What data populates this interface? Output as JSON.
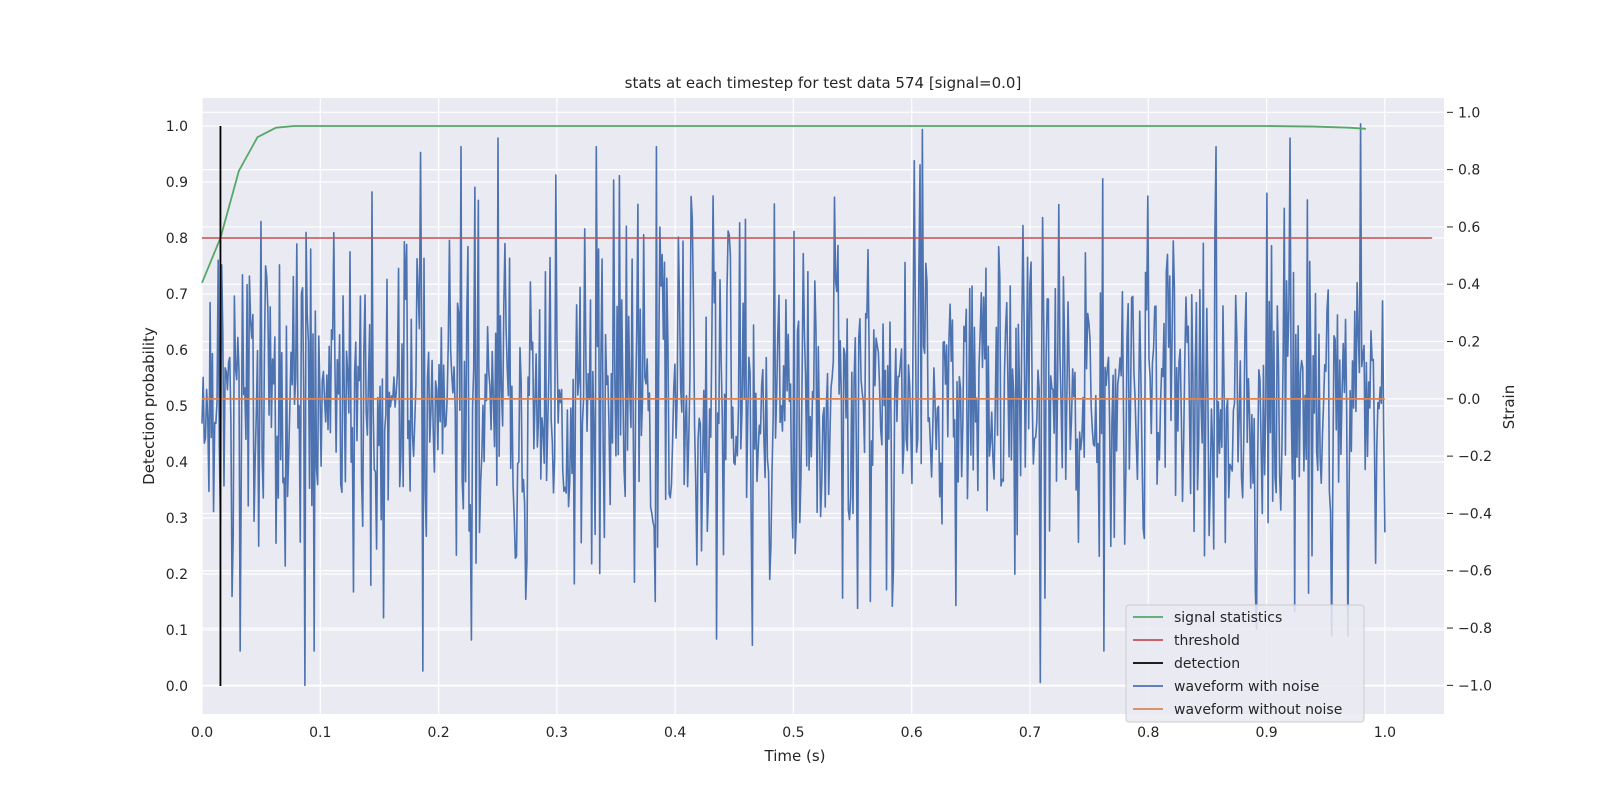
{
  "chart_data": {
    "type": "line",
    "title": "stats at each timestep for test data 574 [signal=0.0]",
    "xlabel": "Time (s)",
    "ylabel_left": "Detection probability",
    "ylabel_right": "Strain",
    "xlim": [
      0.0,
      1.05
    ],
    "ylim_left": [
      -0.05,
      1.05
    ],
    "ylim_right": [
      -1.1,
      1.05
    ],
    "x_ticks": [
      "0.0",
      "0.1",
      "0.2",
      "0.3",
      "0.4",
      "0.5",
      "0.6",
      "0.7",
      "0.8",
      "0.9",
      "1.0"
    ],
    "y_ticks_left": [
      "0.0",
      "0.1",
      "0.2",
      "0.3",
      "0.4",
      "0.5",
      "0.6",
      "0.7",
      "0.8",
      "0.9",
      "1.0"
    ],
    "y_ticks_right": [
      "−1.0",
      "−0.8",
      "−0.6",
      "−0.4",
      "−0.2",
      "0.0",
      "0.2",
      "0.4",
      "0.6",
      "0.8",
      "1.0"
    ],
    "grid": true,
    "background": "#eaeaf2",
    "legend_placement": "lower-right",
    "series": [
      {
        "name": "signal statistics",
        "axis": "left",
        "color": "#55a868",
        "x": [
          0.0,
          0.0156,
          0.0312,
          0.0469,
          0.0625,
          0.0781,
          0.1,
          0.2,
          0.3,
          0.4,
          0.5,
          0.6,
          0.7,
          0.8,
          0.9,
          0.94,
          0.97,
          0.984
        ],
        "y": [
          0.72,
          0.8,
          0.92,
          0.98,
          0.997,
          1.0,
          1.0,
          1.0,
          1.0,
          1.0,
          1.0,
          1.0,
          1.0,
          1.0,
          1.0,
          0.999,
          0.997,
          0.995
        ]
      },
      {
        "name": "threshold",
        "axis": "left",
        "color": "#c44e52",
        "x": [
          0.0,
          1.04
        ],
        "y": [
          0.8,
          0.8
        ]
      },
      {
        "name": "detection",
        "axis": "left",
        "color": "#000000",
        "x": [
          0.0156,
          0.0156
        ],
        "y": [
          0.0,
          1.0
        ]
      },
      {
        "name": "waveform with noise",
        "axis": "right",
        "color": "#4c72b0",
        "samples": 1024,
        "x_range": [
          0.0,
          1.0
        ],
        "y_range": [
          -1.0,
          1.0
        ],
        "peaks": [
          {
            "x": 0.087,
            "y": -1.0
          },
          {
            "x": 0.185,
            "y": 0.86
          },
          {
            "x": 0.187,
            "y": -0.95
          },
          {
            "x": 0.25,
            "y": 0.91
          },
          {
            "x": 0.465,
            "y": -0.86
          },
          {
            "x": 0.609,
            "y": 0.94
          },
          {
            "x": 0.709,
            "y": -0.99
          },
          {
            "x": 0.92,
            "y": 0.91
          },
          {
            "x": 0.979,
            "y": 0.96
          }
        ]
      },
      {
        "name": "waveform without noise",
        "axis": "right",
        "color": "#dd8452",
        "x": [
          0.0,
          1.0
        ],
        "y": [
          0.0,
          0.0
        ]
      }
    ]
  }
}
